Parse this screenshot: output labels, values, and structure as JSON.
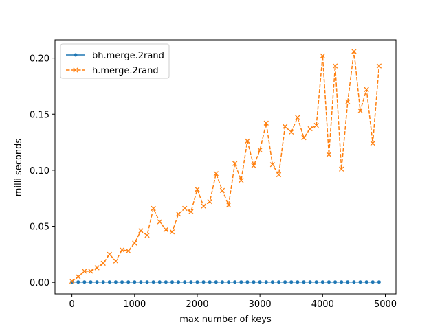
{
  "chart_data": {
    "type": "line",
    "xlabel": "max number of keys",
    "ylabel": "milli seconds",
    "xlim": [
      -270,
      5170
    ],
    "ylim": [
      -0.0103,
      0.2163
    ],
    "xticks": [
      0,
      1000,
      2000,
      3000,
      4000,
      5000
    ],
    "xtick_labels": [
      "0",
      "1000",
      "2000",
      "3000",
      "4000",
      "5000"
    ],
    "yticks": [
      0.0,
      0.05,
      0.1,
      0.15,
      0.2
    ],
    "ytick_labels": [
      "0.00",
      "0.05",
      "0.10",
      "0.15",
      "0.20"
    ],
    "grid": false,
    "legend_position": "top-left",
    "x": [
      0,
      100,
      200,
      300,
      400,
      500,
      600,
      700,
      800,
      900,
      1000,
      1100,
      1200,
      1300,
      1400,
      1500,
      1600,
      1700,
      1800,
      1900,
      2000,
      2100,
      2200,
      2300,
      2400,
      2500,
      2600,
      2700,
      2800,
      2900,
      3000,
      3100,
      3200,
      3300,
      3400,
      3500,
      3600,
      3700,
      3800,
      3900,
      4000,
      4100,
      4200,
      4300,
      4400,
      4500,
      4600,
      4700,
      4800,
      4900
    ],
    "series": [
      {
        "name": "bh.merge.2rand",
        "color": "#1f77b4",
        "style": "solid",
        "marker": "dot",
        "values": [
          0.0003,
          0.0003,
          0.0003,
          0.0003,
          0.0003,
          0.0003,
          0.0003,
          0.0003,
          0.0003,
          0.0003,
          0.0003,
          0.0003,
          0.0003,
          0.0003,
          0.0003,
          0.0003,
          0.0003,
          0.0003,
          0.0003,
          0.0003,
          0.0003,
          0.0003,
          0.0003,
          0.0003,
          0.0003,
          0.0003,
          0.0003,
          0.0003,
          0.0003,
          0.0003,
          0.0003,
          0.0003,
          0.0003,
          0.0003,
          0.0003,
          0.0003,
          0.0003,
          0.0003,
          0.0003,
          0.0003,
          0.0003,
          0.0003,
          0.0003,
          0.0003,
          0.0003,
          0.0003,
          0.0003,
          0.0003,
          0.0003,
          0.0003
        ]
      },
      {
        "name": "h.merge.2rand",
        "color": "#ff7f0e",
        "style": "dashed",
        "marker": "x",
        "values": [
          0.001,
          0.005,
          0.01,
          0.01,
          0.013,
          0.017,
          0.025,
          0.019,
          0.029,
          0.028,
          0.035,
          0.046,
          0.042,
          0.066,
          0.054,
          0.047,
          0.045,
          0.061,
          0.066,
          0.063,
          0.083,
          0.068,
          0.072,
          0.097,
          0.082,
          0.069,
          0.106,
          0.091,
          0.126,
          0.104,
          0.118,
          0.142,
          0.105,
          0.096,
          0.139,
          0.134,
          0.147,
          0.129,
          0.137,
          0.14,
          0.202,
          0.114,
          0.193,
          0.101,
          0.161,
          0.206,
          0.153,
          0.172,
          0.124,
          0.193
        ]
      }
    ]
  }
}
